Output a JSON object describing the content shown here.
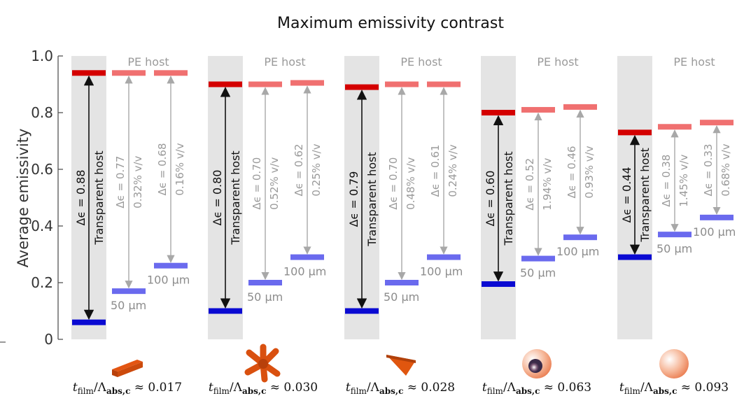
{
  "chart_data": {
    "type": "bar",
    "title": "Maximum emissivity contrast",
    "ylabel": "Average emissivity",
    "ylim": [
      0,
      1.0
    ],
    "yticks": [
      "0",
      "0.2",
      "0.4",
      "0.6",
      "0.8",
      "1.0"
    ],
    "colors": {
      "transparent_high": "#d40000",
      "transparent_low": "#0a0ad2",
      "pe_high": "#f07070",
      "pe_low": "#6a6aee",
      "band": "#e4e4e4",
      "arrow_dark": "#111111",
      "arrow_light": "#a8a8a8",
      "particle": "#e0500f"
    },
    "groups": [
      {
        "host_label": "PE host",
        "particle_icon": "rod-particle-icon",
        "ratio": "≈ 0.017",
        "transparent": {
          "high": 0.94,
          "low": 0.06,
          "delta": "Δϵ = 0.88",
          "label": "Transparent host"
        },
        "pe": [
          {
            "high": 0.94,
            "low": 0.17,
            "delta": "Δϵ = 0.77",
            "conc": "0.32% v/v",
            "size": "50 µm"
          },
          {
            "high": 0.94,
            "low": 0.26,
            "delta": "Δϵ = 0.68",
            "conc": "0.16% v/v",
            "size": "100 µm"
          }
        ]
      },
      {
        "host_label": "PE host",
        "particle_icon": "star-particle-icon",
        "ratio": "≈ 0.030",
        "transparent": {
          "high": 0.9,
          "low": 0.1,
          "delta": "Δϵ = 0.80",
          "label": "Transparent host"
        },
        "pe": [
          {
            "high": 0.9,
            "low": 0.2,
            "delta": "Δϵ = 0.70",
            "conc": "0.52% v/v",
            "size": "50 µm"
          },
          {
            "high": 0.905,
            "low": 0.29,
            "delta": "Δϵ = 0.62",
            "conc": "0.25% v/v",
            "size": "100 µm"
          }
        ]
      },
      {
        "host_label": "PE host",
        "particle_icon": "triangle-particle-icon",
        "ratio": "≈ 0.028",
        "transparent": {
          "high": 0.89,
          "low": 0.1,
          "delta": "Δϵ = 0.79",
          "label": "Transparent host"
        },
        "pe": [
          {
            "high": 0.9,
            "low": 0.2,
            "delta": "Δϵ = 0.70",
            "conc": "0.48% v/v",
            "size": "50 µm"
          },
          {
            "high": 0.9,
            "low": 0.29,
            "delta": "Δϵ = 0.61",
            "conc": "0.24% v/v",
            "size": "100 µm"
          }
        ]
      },
      {
        "host_label": "PE host",
        "particle_icon": "hollow-sphere-particle-icon",
        "ratio": "≈ 0.063",
        "transparent": {
          "high": 0.8,
          "low": 0.195,
          "delta": "Δϵ = 0.60",
          "label": "Transparent host"
        },
        "pe": [
          {
            "high": 0.81,
            "low": 0.285,
            "delta": "Δϵ = 0.52",
            "conc": "1.94% v/v",
            "size": "50 µm"
          },
          {
            "high": 0.82,
            "low": 0.36,
            "delta": "Δϵ = 0.46",
            "conc": "0.93% v/v",
            "size": "100 µm"
          }
        ]
      },
      {
        "host_label": "PE host",
        "particle_icon": "sphere-particle-icon",
        "ratio": "≈ 0.093",
        "transparent": {
          "high": 0.73,
          "low": 0.29,
          "delta": "Δϵ = 0.44",
          "label": "Transparent host"
        },
        "pe": [
          {
            "high": 0.75,
            "low": 0.37,
            "delta": "Δϵ = 0.38",
            "conc": "1.45% v/v",
            "size": "50 µm"
          },
          {
            "high": 0.765,
            "low": 0.43,
            "delta": "Δϵ = 0.33",
            "conc": "0.68% v/v",
            "size": "100 µm"
          }
        ]
      }
    ]
  }
}
